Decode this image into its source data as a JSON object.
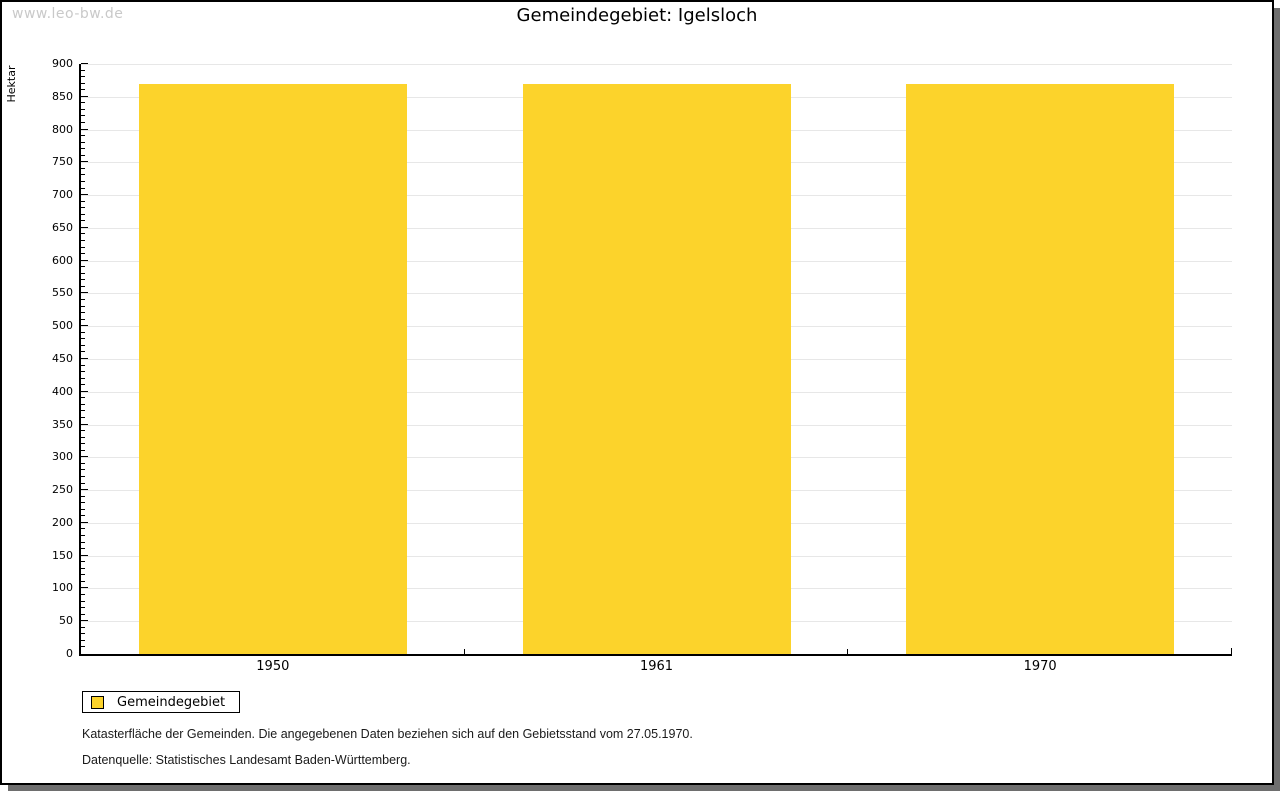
{
  "watermark": "www.leo-bw.de",
  "title": "Gemeindegebiet: Igelsloch",
  "chart_data": {
    "type": "bar",
    "title": "Gemeindegebiet: Igelsloch",
    "categories": [
      "1950",
      "1961",
      "1970"
    ],
    "series": [
      {
        "name": "Gemeindegebiet",
        "values": [
          870,
          870,
          870
        ]
      }
    ],
    "xlabel": "",
    "ylabel": "Hektar",
    "ylim": [
      0,
      900
    ],
    "ytick_step": 50,
    "minor_tick_step": 10,
    "grid": true,
    "legend_position": "bottom-left",
    "bar_color": "#fcd32b"
  },
  "legend": {
    "label": "Gemeindegebiet",
    "swatch_color": "#fcd32b"
  },
  "footnotes": [
    "Katasterfläche der Gemeinden. Die angegebenen Daten beziehen sich auf den Gebietsstand vom 27.05.1970.",
    "Datenquelle: Statistisches Landesamt Baden-Württemberg."
  ],
  "colors": {
    "bar": "#fcd32b",
    "gridline": "#e7e7e7",
    "axis": "#000000",
    "watermark": "#c9c9c9",
    "frame_shadow": "#6e6e6e"
  }
}
